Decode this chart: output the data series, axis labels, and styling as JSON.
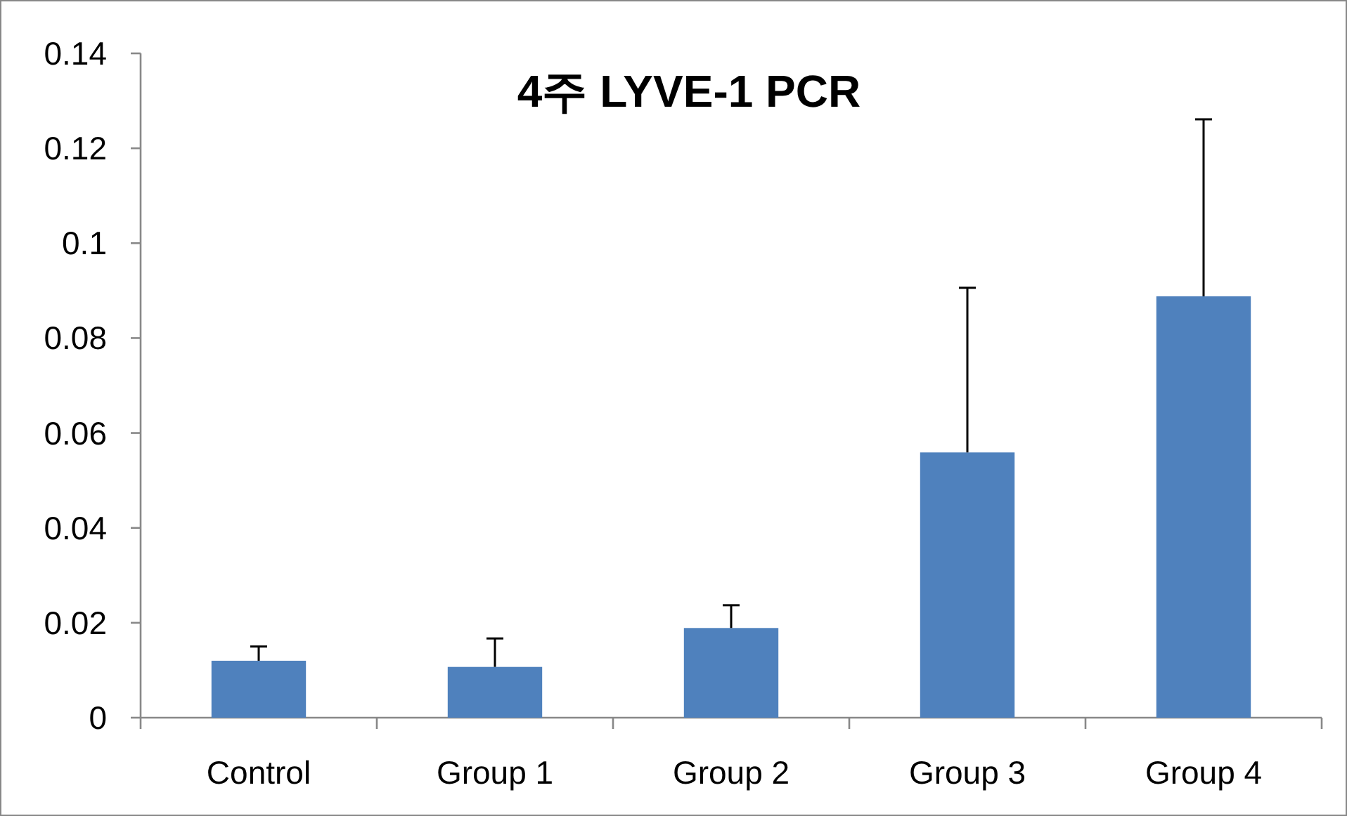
{
  "chart_data": {
    "type": "bar",
    "title": "4주 LYVE-1 PCR",
    "categories": [
      "Control",
      "Group 1",
      "Group 2",
      "Group 3",
      "Group 4"
    ],
    "values": [
      0.012,
      0.0107,
      0.0189,
      0.0559,
      0.0888
    ],
    "errors": [
      [
        0.012,
        0.015
      ],
      [
        0.0107,
        0.0167
      ],
      [
        0.0189,
        0.0237
      ],
      [
        0.0559,
        0.0906
      ],
      [
        0.0888,
        0.1261
      ]
    ],
    "color": "#4f81bd",
    "ylim": [
      0,
      0.14
    ],
    "yticks": [
      0,
      0.02,
      0.04,
      0.06,
      0.08,
      0.1,
      0.12,
      0.14
    ],
    "grid": false
  }
}
